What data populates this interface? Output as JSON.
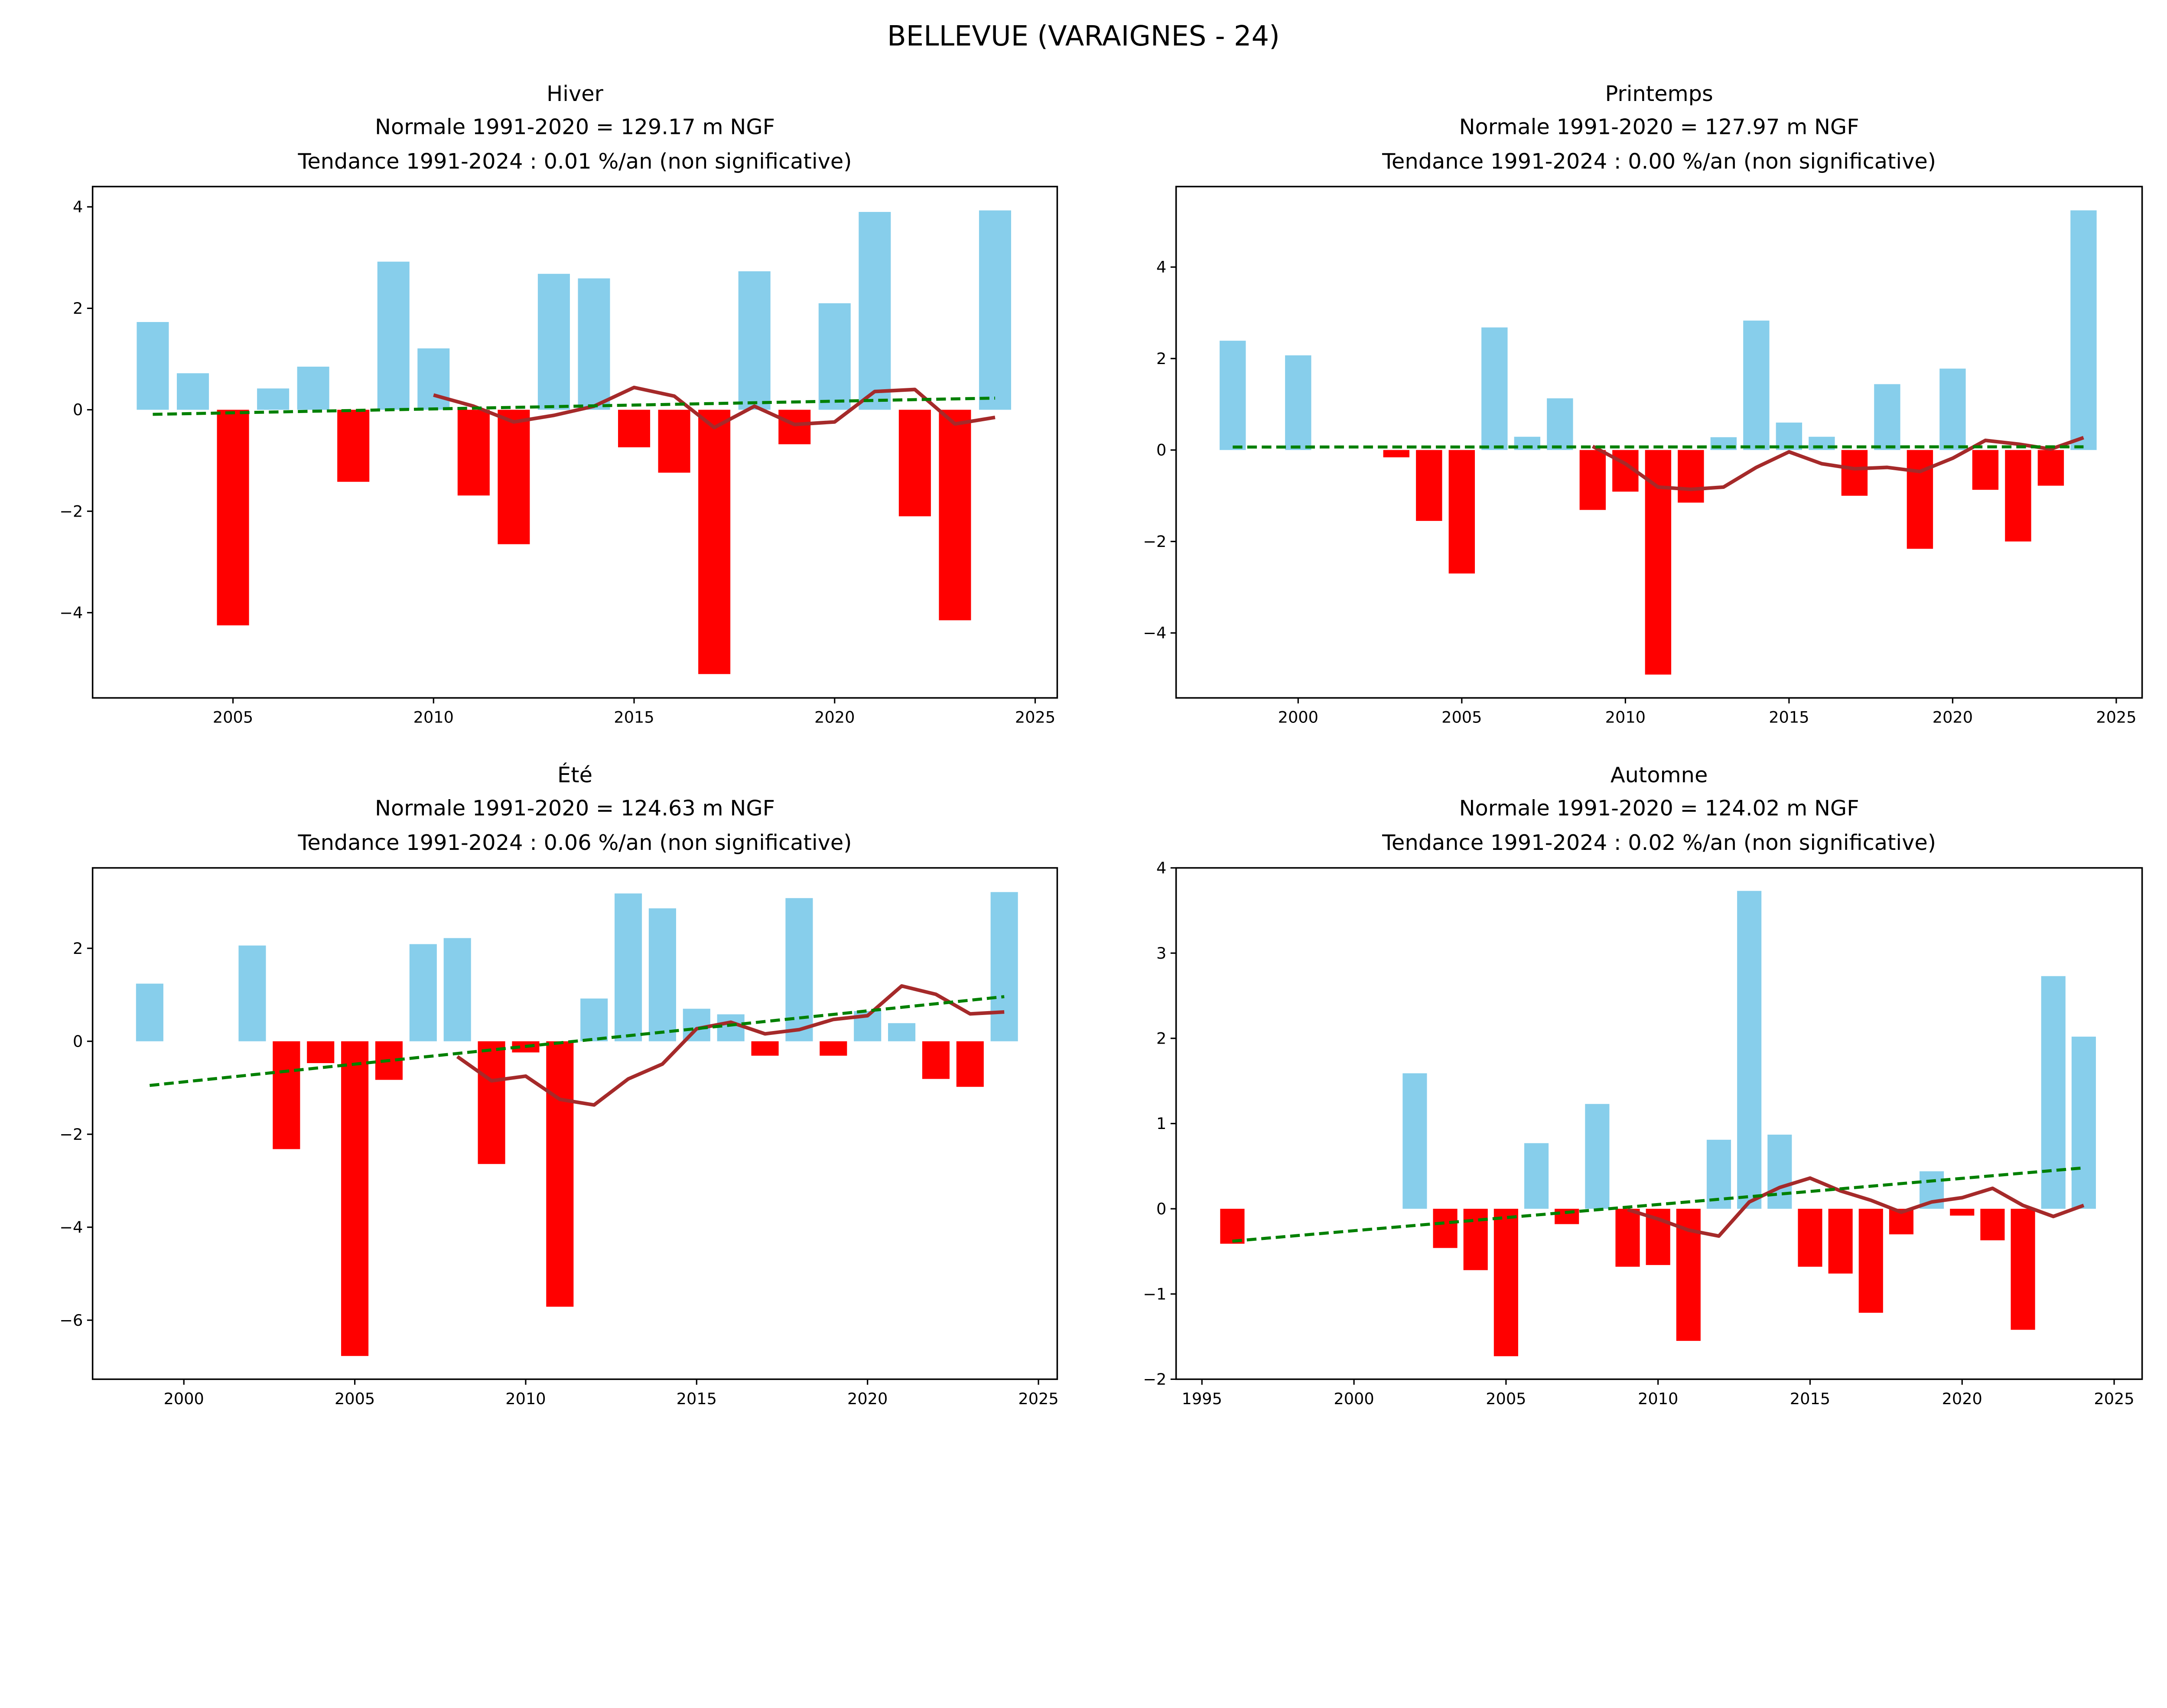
{
  "suptitle": "BELLEVUE (VARAIGNES - 24)",
  "colors": {
    "positive": "#87CEEB",
    "negative": "#FF0000",
    "moving_average": "#A52A2A",
    "trend": "#008000"
  },
  "chart_data": [
    {
      "type": "bar",
      "title": [
        "Hiver",
        "Normale 1991-2020 = 129.17 m NGF",
        "Tendance 1991-2024 : 0.01 %/an (non significative)"
      ],
      "xlim": [
        2001.5,
        2025.55
      ],
      "ylim": [
        -5.68,
        4.4
      ],
      "xticks": [
        2005,
        2010,
        2015,
        2020,
        2025
      ],
      "xtick_labels": [
        "2005",
        "2010",
        "2015",
        "2020",
        "2025"
      ],
      "yticks": [
        -4,
        -2,
        0,
        2,
        4
      ],
      "ytick_labels": [
        "−4",
        "−2",
        "0",
        "2",
        "4"
      ],
      "years": [
        2003,
        2004,
        2005,
        2006,
        2007,
        2008,
        2009,
        2010,
        2011,
        2012,
        2013,
        2014,
        2015,
        2016,
        2017,
        2018,
        2019,
        2020,
        2021,
        2022,
        2023,
        2024
      ],
      "values": [
        1.73,
        0.72,
        -4.25,
        0.42,
        0.85,
        -1.42,
        2.92,
        1.21,
        -1.69,
        -2.65,
        2.68,
        2.59,
        -0.74,
        -1.24,
        -5.21,
        2.73,
        -0.68,
        2.1,
        3.9,
        -2.1,
        -4.15,
        3.93
      ],
      "moving_average": {
        "years": [
          2010,
          2011,
          2012,
          2013,
          2014,
          2015,
          2016,
          2017,
          2018,
          2019,
          2020,
          2021,
          2022,
          2023,
          2024
        ],
        "values": [
          0.29,
          0.07,
          -0.24,
          -0.11,
          0.07,
          0.44,
          0.27,
          -0.35,
          0.07,
          -0.29,
          -0.24,
          0.36,
          0.4,
          -0.28,
          -0.15
        ]
      },
      "trend": {
        "years": [
          2003,
          2024
        ],
        "values": [
          -0.09,
          0.23
        ]
      }
    },
    {
      "type": "bar",
      "title": [
        "Printemps",
        "Normale 1991-2020 = 127.97 m NGF",
        "Tendance 1991-2024 : 0.00 %/an (non significative)"
      ],
      "xlim": [
        1996.27,
        2025.79
      ],
      "ylim": [
        -5.42,
        5.76
      ],
      "xticks": [
        2000,
        2005,
        2010,
        2015,
        2020,
        2025
      ],
      "xtick_labels": [
        "2000",
        "2005",
        "2010",
        "2015",
        "2020",
        "2025"
      ],
      "yticks": [
        -4,
        -2,
        0,
        2,
        4
      ],
      "ytick_labels": [
        "−4",
        "−2",
        "0",
        "2",
        "4"
      ],
      "years": [
        1998,
        2000,
        2003,
        2004,
        2005,
        2006,
        2007,
        2008,
        2009,
        2010,
        2011,
        2012,
        2013,
        2014,
        2015,
        2016,
        2017,
        2018,
        2019,
        2020,
        2021,
        2022,
        2023,
        2024
      ],
      "values": [
        2.39,
        2.07,
        -0.16,
        -1.55,
        -2.7,
        2.68,
        0.29,
        1.13,
        -1.31,
        -0.91,
        -4.91,
        -1.15,
        0.28,
        2.83,
        0.6,
        0.29,
        -1.0,
        1.44,
        -2.16,
        1.78,
        -0.87,
        -2.0,
        -0.78,
        5.24
      ],
      "moving_average": {
        "years": [
          2009,
          2010,
          2011,
          2012,
          2013,
          2014,
          2015,
          2016,
          2017,
          2018,
          2019,
          2020,
          2021,
          2022,
          2023,
          2024
        ],
        "values": [
          0.08,
          -0.3,
          -0.81,
          -0.86,
          -0.81,
          -0.38,
          -0.04,
          -0.3,
          -0.41,
          -0.38,
          -0.47,
          -0.18,
          0.21,
          0.13,
          0.02,
          0.27
        ]
      },
      "trend": {
        "years": [
          1998,
          2024
        ],
        "values": [
          0.065,
          0.07
        ]
      }
    },
    {
      "type": "bar",
      "title": [
        "Été",
        "Normale 1991-2020 = 124.63 m NGF",
        "Tendance 1991-2024 : 0.06 %/an (non significative)"
      ],
      "xlim": [
        1997.33,
        2025.55
      ],
      "ylim": [
        -7.27,
        3.73
      ],
      "xticks": [
        2000,
        2005,
        2010,
        2015,
        2020,
        2025
      ],
      "xtick_labels": [
        "2000",
        "2005",
        "2010",
        "2015",
        "2020",
        "2025"
      ],
      "yticks": [
        -6,
        -4,
        -2,
        0,
        2
      ],
      "ytick_labels": [
        "−6",
        "−4",
        "−2",
        "0",
        "2"
      ],
      "years": [
        1999,
        2002,
        2003,
        2004,
        2005,
        2006,
        2007,
        2008,
        2009,
        2010,
        2011,
        2012,
        2013,
        2014,
        2015,
        2016,
        2017,
        2018,
        2019,
        2020,
        2021,
        2022,
        2023,
        2024
      ],
      "values": [
        1.24,
        2.06,
        -2.32,
        -0.47,
        -6.77,
        -0.83,
        2.09,
        2.22,
        -2.64,
        -0.24,
        -5.71,
        0.92,
        3.18,
        2.86,
        0.7,
        0.58,
        -0.31,
        3.08,
        -0.31,
        0.65,
        0.39,
        -0.81,
        -0.98,
        3.21
      ],
      "moving_average": {
        "years": [
          2008,
          2009,
          2010,
          2011,
          2012,
          2013,
          2014,
          2015,
          2016,
          2017,
          2018,
          2019,
          2020,
          2021,
          2022,
          2023,
          2024
        ],
        "values": [
          -0.33,
          -0.85,
          -0.75,
          -1.25,
          -1.37,
          -0.81,
          -0.49,
          0.27,
          0.41,
          0.16,
          0.25,
          0.47,
          0.55,
          1.19,
          1.01,
          0.59,
          0.63
        ]
      },
      "trend": {
        "years": [
          1999,
          2024
        ],
        "values": [
          -0.95,
          0.96
        ]
      }
    },
    {
      "type": "bar",
      "title": [
        "Automne",
        "Normale 1991-2020 = 124.02 m NGF",
        "Tendance 1991-2024 : 0.02 %/an (non significative)"
      ],
      "xlim": [
        1994.15,
        2025.92
      ],
      "ylim": [
        -2,
        4
      ],
      "xticks": [
        1995,
        2000,
        2005,
        2010,
        2015,
        2020,
        2025
      ],
      "xtick_labels": [
        "1995",
        "2000",
        "2005",
        "2010",
        "2015",
        "2020",
        "2025"
      ],
      "yticks": [
        -2,
        -1,
        0,
        1,
        2,
        3,
        4
      ],
      "ytick_labels": [
        "−2",
        "−1",
        "0",
        "1",
        "2",
        "3",
        "4"
      ],
      "years": [
        1996,
        2002,
        2003,
        2004,
        2005,
        2006,
        2007,
        2008,
        2009,
        2010,
        2011,
        2012,
        2013,
        2014,
        2015,
        2016,
        2017,
        2018,
        2019,
        2020,
        2021,
        2022,
        2023,
        2024
      ],
      "values": [
        -0.41,
        1.59,
        -0.46,
        -0.72,
        -1.73,
        0.77,
        -0.18,
        1.23,
        -0.68,
        -0.66,
        -1.55,
        0.81,
        3.73,
        0.87,
        -0.68,
        -0.76,
        -1.22,
        -0.3,
        0.44,
        -0.08,
        -0.37,
        -1.42,
        2.73,
        2.02
      ],
      "moving_average": {
        "years": [
          2009,
          2010,
          2011,
          2012,
          2013,
          2014,
          2015,
          2016,
          2017,
          2018,
          2019,
          2020,
          2021,
          2022,
          2023,
          2024
        ],
        "values": [
          -0.01,
          -0.12,
          -0.25,
          -0.32,
          0.08,
          0.25,
          0.36,
          0.21,
          0.1,
          -0.04,
          0.08,
          0.13,
          0.24,
          0.04,
          -0.09,
          0.04
        ]
      },
      "trend": {
        "years": [
          1996,
          2024
        ],
        "values": [
          -0.38,
          0.48
        ]
      }
    }
  ]
}
